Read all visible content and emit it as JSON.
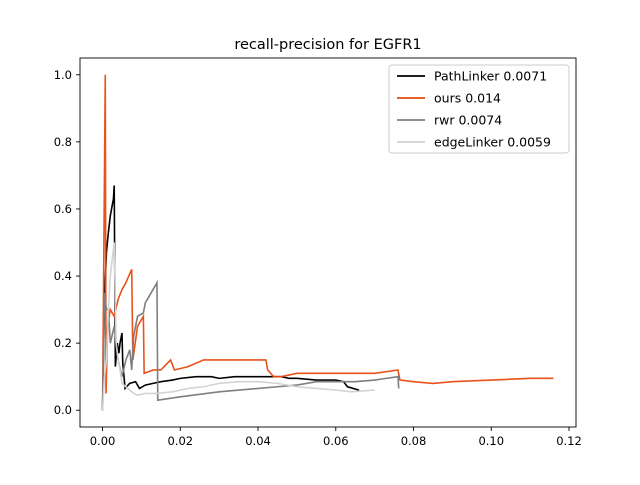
{
  "chart_data": {
    "type": "line",
    "title": "recall-precision for EGFR1",
    "xlabel": "",
    "ylabel": "",
    "xlim": [
      -0.0058,
      0.1218
    ],
    "ylim": [
      -0.05,
      1.05
    ],
    "xticks": [
      0.0,
      0.02,
      0.04,
      0.06,
      0.08,
      0.1,
      0.12
    ],
    "xtick_labels": [
      "0.00",
      "0.02",
      "0.04",
      "0.06",
      "0.08",
      "0.10",
      "0.12"
    ],
    "yticks": [
      0.0,
      0.2,
      0.4,
      0.6,
      0.8,
      1.0
    ],
    "ytick_labels": [
      "0.0",
      "0.2",
      "0.4",
      "0.6",
      "0.8",
      "1.0"
    ],
    "grid": false,
    "legend_position": "upper right",
    "series": [
      {
        "name": "PathLinker 0.0071",
        "color": "#000000",
        "points": [
          [
            0.0,
            0.0
          ],
          [
            0.0005,
            0.33
          ],
          [
            0.001,
            0.47
          ],
          [
            0.0015,
            0.53
          ],
          [
            0.002,
            0.58
          ],
          [
            0.0028,
            0.63
          ],
          [
            0.003,
            0.67
          ],
          [
            0.0033,
            0.13
          ],
          [
            0.0038,
            0.2
          ],
          [
            0.0042,
            0.17
          ],
          [
            0.0045,
            0.2
          ],
          [
            0.005,
            0.23
          ],
          [
            0.0052,
            0.14
          ],
          [
            0.0058,
            0.065
          ],
          [
            0.007,
            0.08
          ],
          [
            0.0085,
            0.085
          ],
          [
            0.0095,
            0.065
          ],
          [
            0.011,
            0.075
          ],
          [
            0.013,
            0.08
          ],
          [
            0.015,
            0.085
          ],
          [
            0.018,
            0.09
          ],
          [
            0.02,
            0.095
          ],
          [
            0.024,
            0.1
          ],
          [
            0.028,
            0.1
          ],
          [
            0.03,
            0.095
          ],
          [
            0.034,
            0.1
          ],
          [
            0.04,
            0.1
          ],
          [
            0.046,
            0.1
          ],
          [
            0.048,
            0.095
          ],
          [
            0.05,
            0.095
          ],
          [
            0.055,
            0.09
          ],
          [
            0.06,
            0.09
          ],
          [
            0.062,
            0.085
          ],
          [
            0.063,
            0.07
          ],
          [
            0.066,
            0.06
          ]
        ]
      },
      {
        "name": "ours 0.014",
        "color": "#e8490f",
        "points": [
          [
            0.0,
            0.0
          ],
          [
            0.0007,
            1.0
          ],
          [
            0.0009,
            0.05
          ],
          [
            0.0013,
            0.25
          ],
          [
            0.002,
            0.3
          ],
          [
            0.003,
            0.28
          ],
          [
            0.004,
            0.33
          ],
          [
            0.005,
            0.36
          ],
          [
            0.006,
            0.38
          ],
          [
            0.0075,
            0.42
          ],
          [
            0.0078,
            0.15
          ],
          [
            0.009,
            0.25
          ],
          [
            0.0105,
            0.28
          ],
          [
            0.0107,
            0.11
          ],
          [
            0.013,
            0.12
          ],
          [
            0.015,
            0.12
          ],
          [
            0.0175,
            0.15
          ],
          [
            0.0185,
            0.12
          ],
          [
            0.022,
            0.13
          ],
          [
            0.026,
            0.15
          ],
          [
            0.03,
            0.15
          ],
          [
            0.034,
            0.15
          ],
          [
            0.038,
            0.15
          ],
          [
            0.042,
            0.15
          ],
          [
            0.0425,
            0.12
          ],
          [
            0.044,
            0.1
          ],
          [
            0.046,
            0.1
          ],
          [
            0.05,
            0.11
          ],
          [
            0.055,
            0.11
          ],
          [
            0.06,
            0.11
          ],
          [
            0.065,
            0.11
          ],
          [
            0.07,
            0.11
          ],
          [
            0.076,
            0.12
          ],
          [
            0.0765,
            0.09
          ],
          [
            0.08,
            0.085
          ],
          [
            0.085,
            0.08
          ],
          [
            0.09,
            0.085
          ],
          [
            0.1,
            0.09
          ],
          [
            0.11,
            0.095
          ],
          [
            0.116,
            0.095
          ]
        ]
      },
      {
        "name": "rwr 0.0074",
        "color": "#7f7f7f",
        "points": [
          [
            0.0,
            0.0
          ],
          [
            0.0005,
            0.35
          ],
          [
            0.001,
            0.3
          ],
          [
            0.0015,
            0.3
          ],
          [
            0.002,
            0.2
          ],
          [
            0.003,
            0.25
          ],
          [
            0.004,
            0.15
          ],
          [
            0.005,
            0.1
          ],
          [
            0.006,
            0.15
          ],
          [
            0.007,
            0.18
          ],
          [
            0.0075,
            0.12
          ],
          [
            0.008,
            0.22
          ],
          [
            0.009,
            0.28
          ],
          [
            0.0105,
            0.29
          ],
          [
            0.011,
            0.32
          ],
          [
            0.012,
            0.34
          ],
          [
            0.014,
            0.38
          ],
          [
            0.0142,
            0.03
          ],
          [
            0.02,
            0.04
          ],
          [
            0.03,
            0.055
          ],
          [
            0.04,
            0.065
          ],
          [
            0.045,
            0.07
          ],
          [
            0.05,
            0.075
          ],
          [
            0.055,
            0.085
          ],
          [
            0.06,
            0.085
          ],
          [
            0.065,
            0.085
          ],
          [
            0.07,
            0.09
          ],
          [
            0.076,
            0.1
          ],
          [
            0.0762,
            0.065
          ]
        ]
      },
      {
        "name": "edgeLinker 0.0059",
        "color": "#d3d3d3",
        "points": [
          [
            0.0,
            0.0
          ],
          [
            0.0005,
            0.1
          ],
          [
            0.001,
            0.15
          ],
          [
            0.0015,
            0.3
          ],
          [
            0.002,
            0.4
          ],
          [
            0.003,
            0.5
          ],
          [
            0.0035,
            0.2
          ],
          [
            0.004,
            0.15
          ],
          [
            0.0045,
            0.12
          ],
          [
            0.005,
            0.08
          ],
          [
            0.006,
            0.07
          ],
          [
            0.007,
            0.06
          ],
          [
            0.008,
            0.05
          ],
          [
            0.009,
            0.045
          ],
          [
            0.011,
            0.05
          ],
          [
            0.014,
            0.05
          ],
          [
            0.018,
            0.055
          ],
          [
            0.022,
            0.065
          ],
          [
            0.026,
            0.07
          ],
          [
            0.03,
            0.08
          ],
          [
            0.035,
            0.085
          ],
          [
            0.04,
            0.085
          ],
          [
            0.045,
            0.08
          ],
          [
            0.05,
            0.07
          ],
          [
            0.055,
            0.065
          ],
          [
            0.06,
            0.06
          ],
          [
            0.064,
            0.055
          ],
          [
            0.07,
            0.06
          ]
        ]
      }
    ]
  }
}
